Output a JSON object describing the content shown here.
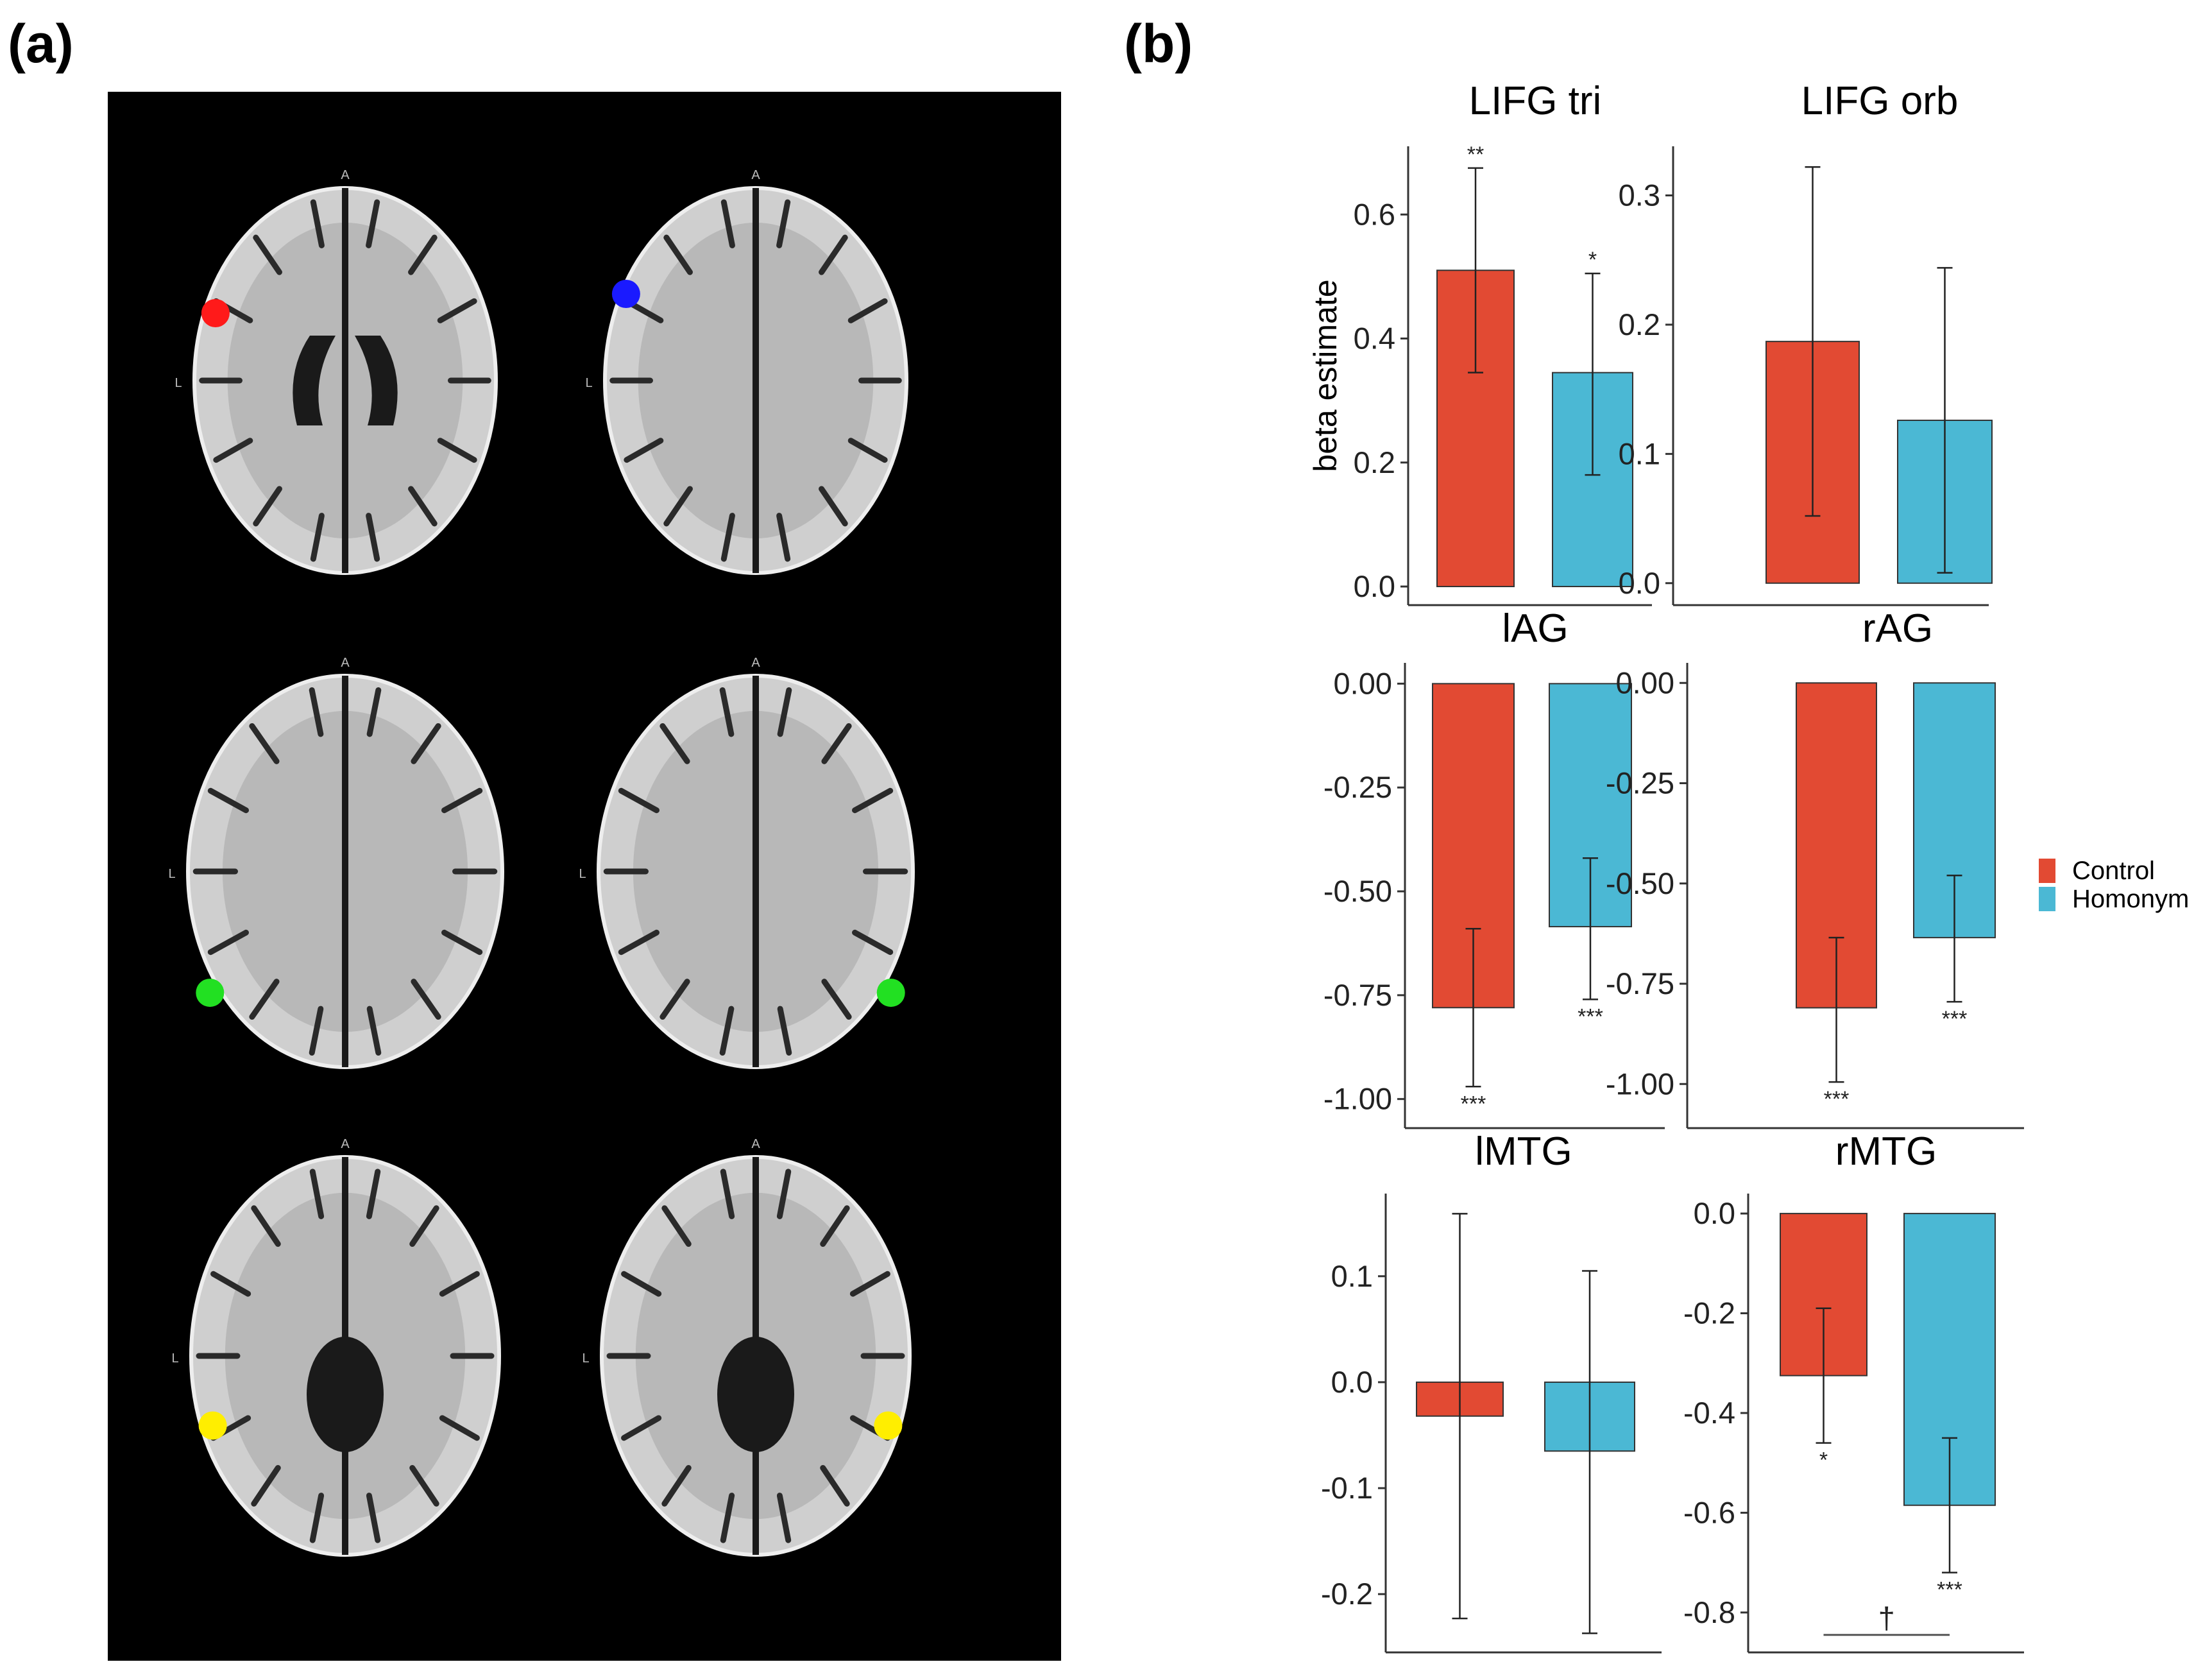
{
  "panels": {
    "a_label": "(a)",
    "b_label": "(b)"
  },
  "brain_images": {
    "orientation_labels": {
      "anterior": "A",
      "left": "L"
    },
    "slices": [
      {
        "roi_color": "#ff1a1a",
        "side": "left"
      },
      {
        "roi_color": "#1a1aff",
        "side": "left"
      },
      {
        "roi_color": "#22e022",
        "side": "left"
      },
      {
        "roi_color": "#22e022",
        "side": "right"
      },
      {
        "roi_color": "#ffee00",
        "side": "left"
      },
      {
        "roi_color": "#ffee00",
        "side": "right"
      }
    ]
  },
  "legend": {
    "items": [
      {
        "label": "Control",
        "color": "#E24A33"
      },
      {
        "label": "Homonym",
        "color": "#4BB8D4"
      }
    ]
  },
  "chart_data": [
    {
      "type": "bar",
      "title": "LIFG tri",
      "ylabel": "beta estimate",
      "categories": [
        "Control",
        "Homonym"
      ],
      "values": [
        0.51,
        0.345
      ],
      "error_low": [
        0.345,
        0.18
      ],
      "error_high": [
        0.675,
        0.505
      ],
      "ylim": [
        -0.03,
        0.71
      ],
      "ticks": [
        0.0,
        0.2,
        0.4,
        0.6
      ],
      "tick_labels": [
        "0.0",
        "0.2",
        "0.4",
        "0.6"
      ],
      "significance": [
        "**",
        "*"
      ]
    },
    {
      "type": "bar",
      "title": "LIFG orb",
      "ylabel": "",
      "categories": [
        "Control",
        "Homonym"
      ],
      "values": [
        0.187,
        0.126
      ],
      "error_low": [
        0.052,
        0.008
      ],
      "error_high": [
        0.322,
        0.244
      ],
      "ylim": [
        -0.017,
        0.338
      ],
      "ticks": [
        0.0,
        0.1,
        0.2,
        0.3
      ],
      "tick_labels": [
        "0.0",
        "0.1",
        "0.2",
        "0.3"
      ],
      "significance": [
        "",
        ""
      ]
    },
    {
      "type": "bar",
      "title": "lAG",
      "ylabel": "",
      "categories": [
        "Control",
        "Homonym"
      ],
      "values": [
        -0.78,
        -0.585
      ],
      "error_low": [
        -0.97,
        -0.76
      ],
      "error_high": [
        -0.59,
        -0.42
      ],
      "ylim": [
        -1.07,
        0.05
      ],
      "ticks": [
        0.0,
        -0.25,
        -0.5,
        -0.75,
        -1.0
      ],
      "tick_labels": [
        "0.00",
        "-0.25",
        "-0.50",
        "-0.75",
        "-1.00"
      ],
      "significance": [
        "***",
        "***"
      ]
    },
    {
      "type": "bar",
      "title": "rAG",
      "ylabel": "",
      "categories": [
        "Control",
        "Homonym"
      ],
      "values": [
        -0.81,
        -0.635
      ],
      "error_low": [
        -0.995,
        -0.795
      ],
      "error_high": [
        -0.635,
        -0.48
      ],
      "ylim": [
        -1.11,
        0.05
      ],
      "ticks": [
        0.0,
        -0.25,
        -0.5,
        -0.75,
        -1.0
      ],
      "tick_labels": [
        "0.00",
        "-0.25",
        "-0.50",
        "-0.75",
        "-1.00"
      ],
      "significance": [
        "***",
        "***"
      ]
    },
    {
      "type": "bar",
      "title": "lMTG",
      "ylabel": "",
      "categories": [
        "Control",
        "Homonym"
      ],
      "values": [
        -0.032,
        -0.065
      ],
      "error_low": [
        -0.223,
        -0.237
      ],
      "error_high": [
        0.159,
        0.105
      ],
      "ylim": [
        -0.255,
        0.178
      ],
      "ticks": [
        0.1,
        0.0,
        -0.1,
        -0.2
      ],
      "tick_labels": [
        "0.1",
        "0.0",
        "-0.1",
        "-0.2"
      ],
      "significance": [
        "",
        ""
      ]
    },
    {
      "type": "bar",
      "title": "rMTG",
      "ylabel": "",
      "categories": [
        "Control",
        "Homonym"
      ],
      "values": [
        -0.325,
        -0.585
      ],
      "error_low": [
        -0.46,
        -0.72
      ],
      "error_high": [
        -0.19,
        -0.45
      ],
      "ylim": [
        -0.88,
        0.04
      ],
      "ticks": [
        0.0,
        -0.2,
        -0.4,
        -0.6,
        -0.8
      ],
      "tick_labels": [
        "0.0",
        "-0.2",
        "-0.4",
        "-0.6",
        "-0.8"
      ],
      "significance": [
        "*",
        "***"
      ],
      "comparison": {
        "label": "†",
        "y": -0.845
      }
    }
  ]
}
